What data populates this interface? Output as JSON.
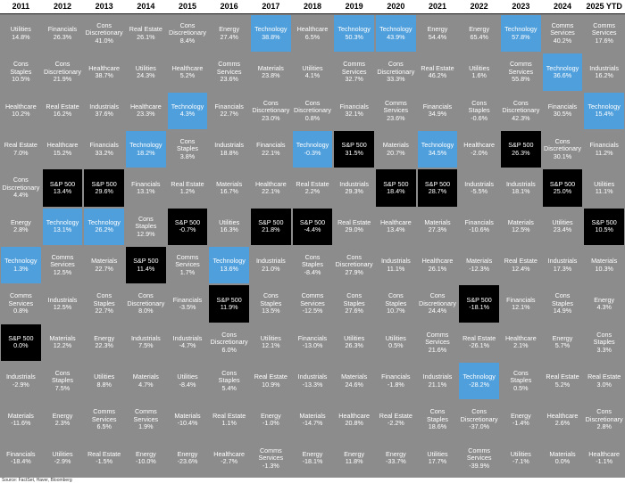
{
  "colors": {
    "grid": "#8c8c8c",
    "technology": "#4f9fdc",
    "sp500": "#000000",
    "text": "#ffffff",
    "header_text": "#000000"
  },
  "footer_text": "Source: FactSet, Haver, Bloomberg",
  "chart_data": {
    "type": "table",
    "title": "",
    "columns": [
      "2011",
      "2012",
      "2013",
      "2014",
      "2015",
      "2016",
      "2017",
      "2018",
      "2019",
      "2020",
      "2021",
      "2022",
      "2023",
      "2024",
      "2025 YTD"
    ],
    "cells": [
      [
        {
          "label": "Utilities",
          "value": "14.8%"
        },
        {
          "label": "Cons Staples",
          "value": "10.5%"
        },
        {
          "label": "Healthcare",
          "value": "10.2%"
        },
        {
          "label": "Real Estate",
          "value": "7.0%"
        },
        {
          "label": "Cons\nDiscretionary",
          "value": "4.4%"
        },
        {
          "label": "Energy",
          "value": "2.8%"
        },
        {
          "label": "Technology",
          "value": "1.3%"
        },
        {
          "label": "Comms\nServices",
          "value": "0.8%"
        },
        {
          "label": "S&P 500",
          "value": "0.0%"
        },
        {
          "label": "Industrials",
          "value": "-2.9%"
        },
        {
          "label": "Materials",
          "value": "-11.6%"
        },
        {
          "label": "Financials",
          "value": "-18.4%"
        }
      ],
      [
        {
          "label": "Financials",
          "value": "26.3%"
        },
        {
          "label": "Cons\nDiscretionary",
          "value": "21.9%"
        },
        {
          "label": "Real Estate",
          "value": "16.2%"
        },
        {
          "label": "Healthcare",
          "value": "15.2%"
        },
        {
          "label": "S&P 500",
          "value": "13.4%"
        },
        {
          "label": "Technology",
          "value": "13.1%"
        },
        {
          "label": "Comms\nServices",
          "value": "12.5%"
        },
        {
          "label": "Industrials",
          "value": "12.5%"
        },
        {
          "label": "Materials",
          "value": "12.2%"
        },
        {
          "label": "Cons Staples",
          "value": "7.5%"
        },
        {
          "label": "Energy",
          "value": "2.3%"
        },
        {
          "label": "Utilities",
          "value": "-2.9%"
        }
      ],
      [
        {
          "label": "Cons\nDiscretionary",
          "value": "41.0%"
        },
        {
          "label": "Healthcare",
          "value": "38.7%"
        },
        {
          "label": "Industrials",
          "value": "37.6%"
        },
        {
          "label": "Financials",
          "value": "33.2%"
        },
        {
          "label": "S&P 500",
          "value": "29.6%"
        },
        {
          "label": "Technology",
          "value": "26.2%"
        },
        {
          "label": "Materials",
          "value": "22.7%"
        },
        {
          "label": "Cons Staples",
          "value": "22.7%"
        },
        {
          "label": "Energy",
          "value": "22.3%"
        },
        {
          "label": "Utilities",
          "value": "8.8%"
        },
        {
          "label": "Comms\nServices",
          "value": "6.5%"
        },
        {
          "label": "Real Estate",
          "value": "-1.5%"
        }
      ],
      [
        {
          "label": "Real Estate",
          "value": "26.1%"
        },
        {
          "label": "Utilities",
          "value": "24.3%"
        },
        {
          "label": "Healthcare",
          "value": "23.3%"
        },
        {
          "label": "Technology",
          "value": "18.2%"
        },
        {
          "label": "Financials",
          "value": "13.1%"
        },
        {
          "label": "Cons Staples",
          "value": "12.9%"
        },
        {
          "label": "S&P 500",
          "value": "11.4%"
        },
        {
          "label": "Cons\nDiscretionary",
          "value": "8.0%"
        },
        {
          "label": "Industrials",
          "value": "7.5%"
        },
        {
          "label": "Materials",
          "value": "4.7%"
        },
        {
          "label": "Comms\nServices",
          "value": "1.9%"
        },
        {
          "label": "Energy",
          "value": "-10.0%"
        }
      ],
      [
        {
          "label": "Cons\nDiscretionary",
          "value": "8.4%"
        },
        {
          "label": "Healthcare",
          "value": "5.2%"
        },
        {
          "label": "Technology",
          "value": "4.3%"
        },
        {
          "label": "Cons Staples",
          "value": "3.8%"
        },
        {
          "label": "Real Estate",
          "value": "1.2%"
        },
        {
          "label": "S&P 500",
          "value": "-0.7%"
        },
        {
          "label": "Comms\nServices",
          "value": "1.7%"
        },
        {
          "label": "Financials",
          "value": "-3.5%"
        },
        {
          "label": "Industrials",
          "value": "-4.7%"
        },
        {
          "label": "Utilities",
          "value": "-8.4%"
        },
        {
          "label": "Materials",
          "value": "-10.4%"
        },
        {
          "label": "Energy",
          "value": "-23.6%"
        }
      ],
      [
        {
          "label": "Energy",
          "value": "27.4%"
        },
        {
          "label": "Comms\nServices",
          "value": "23.6%"
        },
        {
          "label": "Financials",
          "value": "22.7%"
        },
        {
          "label": "Industrials",
          "value": "18.8%"
        },
        {
          "label": "Materials",
          "value": "16.7%"
        },
        {
          "label": "Utilities",
          "value": "16.3%"
        },
        {
          "label": "Technology",
          "value": "13.6%"
        },
        {
          "label": "S&P 500",
          "value": "11.9%"
        },
        {
          "label": "Cons\nDiscretionary",
          "value": "6.0%"
        },
        {
          "label": "Cons Staples",
          "value": "5.4%"
        },
        {
          "label": "Real Estate",
          "value": "1.1%"
        },
        {
          "label": "Healthcare",
          "value": "-2.7%"
        }
      ],
      [
        {
          "label": "Technology",
          "value": "38.8%"
        },
        {
          "label": "Materials",
          "value": "23.8%"
        },
        {
          "label": "Cons\nDiscretionary",
          "value": "23.0%"
        },
        {
          "label": "Financials",
          "value": "22.1%"
        },
        {
          "label": "Healthcare",
          "value": "22.1%"
        },
        {
          "label": "S&P 500",
          "value": "21.8%"
        },
        {
          "label": "Industrials",
          "value": "21.0%"
        },
        {
          "label": "Cons Staples",
          "value": "13.5%"
        },
        {
          "label": "Utilities",
          "value": "12.1%"
        },
        {
          "label": "Real Estate",
          "value": "10.9%"
        },
        {
          "label": "Energy",
          "value": "-1.0%"
        },
        {
          "label": "Comms\nServices",
          "value": "-1.3%"
        }
      ],
      [
        {
          "label": "Healthcare",
          "value": "6.5%"
        },
        {
          "label": "Utilities",
          "value": "4.1%"
        },
        {
          "label": "Cons\nDiscretionary",
          "value": "0.8%"
        },
        {
          "label": "Technology",
          "value": "-0.3%"
        },
        {
          "label": "Real Estate",
          "value": "2.2%"
        },
        {
          "label": "S&P 500",
          "value": "-4.4%"
        },
        {
          "label": "Cons Staples",
          "value": "-8.4%"
        },
        {
          "label": "Comms\nServices",
          "value": "-12.5%"
        },
        {
          "label": "Financials",
          "value": "-13.0%"
        },
        {
          "label": "Industrials",
          "value": "-13.3%"
        },
        {
          "label": "Materials",
          "value": "-14.7%"
        },
        {
          "label": "Energy",
          "value": "-18.1%"
        }
      ],
      [
        {
          "label": "Technology",
          "value": "50.3%"
        },
        {
          "label": "Comms\nServices",
          "value": "32.7%"
        },
        {
          "label": "Financials",
          "value": "32.1%"
        },
        {
          "label": "S&P 500",
          "value": "31.5%"
        },
        {
          "label": "Industrials",
          "value": "29.3%"
        },
        {
          "label": "Real Estate",
          "value": "29.0%"
        },
        {
          "label": "Cons\nDiscretionary",
          "value": "27.9%"
        },
        {
          "label": "Cons Staples",
          "value": "27.6%"
        },
        {
          "label": "Utilities",
          "value": "26.3%"
        },
        {
          "label": "Materials",
          "value": "24.6%"
        },
        {
          "label": "Healthcare",
          "value": "20.8%"
        },
        {
          "label": "Energy",
          "value": "11.8%"
        }
      ],
      [
        {
          "label": "Technology",
          "value": "43.9%"
        },
        {
          "label": "Cons\nDiscretionary",
          "value": "33.3%"
        },
        {
          "label": "Comms\nServices",
          "value": "23.6%"
        },
        {
          "label": "Materials",
          "value": "20.7%"
        },
        {
          "label": "S&P 500",
          "value": "18.4%"
        },
        {
          "label": "Healthcare",
          "value": "13.4%"
        },
        {
          "label": "Industrials",
          "value": "11.1%"
        },
        {
          "label": "Cons Staples",
          "value": "10.7%"
        },
        {
          "label": "Utilities",
          "value": "0.5%"
        },
        {
          "label": "Financials",
          "value": "-1.8%"
        },
        {
          "label": "Real Estate",
          "value": "-2.2%"
        },
        {
          "label": "Energy",
          "value": "-33.7%"
        }
      ],
      [
        {
          "label": "Energy",
          "value": "54.4%"
        },
        {
          "label": "Real Estate",
          "value": "46.2%"
        },
        {
          "label": "Financials",
          "value": "34.9%"
        },
        {
          "label": "Technology",
          "value": "34.5%"
        },
        {
          "label": "S&P 500",
          "value": "28.7%"
        },
        {
          "label": "Materials",
          "value": "27.3%"
        },
        {
          "label": "Healthcare",
          "value": "26.1%"
        },
        {
          "label": "Cons\nDiscretionary",
          "value": "24.4%"
        },
        {
          "label": "Comms\nServices",
          "value": "21.6%"
        },
        {
          "label": "Industrials",
          "value": "21.1%"
        },
        {
          "label": "Cons Staples",
          "value": "18.6%"
        },
        {
          "label": "Utilities",
          "value": "17.7%"
        }
      ],
      [
        {
          "label": "Energy",
          "value": "65.4%"
        },
        {
          "label": "Utilities",
          "value": "1.6%"
        },
        {
          "label": "Cons Staples",
          "value": "-0.6%"
        },
        {
          "label": "Healthcare",
          "value": "-2.0%"
        },
        {
          "label": "Industrials",
          "value": "-5.5%"
        },
        {
          "label": "Financials",
          "value": "-10.6%"
        },
        {
          "label": "Materials",
          "value": "-12.3%"
        },
        {
          "label": "S&P 500",
          "value": "-18.1%"
        },
        {
          "label": "Real Estate",
          "value": "-26.1%"
        },
        {
          "label": "Technology",
          "value": "-28.2%"
        },
        {
          "label": "Cons\nDiscretionary",
          "value": "-37.0%"
        },
        {
          "label": "Comms\nServices",
          "value": "-39.9%"
        }
      ],
      [
        {
          "label": "Technology",
          "value": "57.8%"
        },
        {
          "label": "Comms\nServices",
          "value": "55.8%"
        },
        {
          "label": "Cons\nDiscretionary",
          "value": "42.3%"
        },
        {
          "label": "S&P 500",
          "value": "26.3%"
        },
        {
          "label": "Industrials",
          "value": "18.1%"
        },
        {
          "label": "Materials",
          "value": "12.5%"
        },
        {
          "label": "Real Estate",
          "value": "12.4%"
        },
        {
          "label": "Financials",
          "value": "12.1%"
        },
        {
          "label": "Healthcare",
          "value": "2.1%"
        },
        {
          "label": "Cons Staples",
          "value": "0.5%"
        },
        {
          "label": "Energy",
          "value": "-1.4%"
        },
        {
          "label": "Utilities",
          "value": "-7.1%"
        }
      ],
      [
        {
          "label": "Comms\nServices",
          "value": "40.2%"
        },
        {
          "label": "Technology",
          "value": "36.6%"
        },
        {
          "label": "Financials",
          "value": "30.5%"
        },
        {
          "label": "Cons\nDiscretionary",
          "value": "30.1%"
        },
        {
          "label": "S&P 500",
          "value": "25.0%"
        },
        {
          "label": "Utilities",
          "value": "23.4%"
        },
        {
          "label": "Industrials",
          "value": "17.3%"
        },
        {
          "label": "Cons Staples",
          "value": "14.9%"
        },
        {
          "label": "Energy",
          "value": "5.7%"
        },
        {
          "label": "Real Estate",
          "value": "5.2%"
        },
        {
          "label": "Healthcare",
          "value": "2.6%"
        },
        {
          "label": "Materials",
          "value": "0.0%"
        }
      ],
      [
        {
          "label": "Comms\nServices",
          "value": "17.6%"
        },
        {
          "label": "Industrials",
          "value": "16.2%"
        },
        {
          "label": "Technology",
          "value": "15.4%"
        },
        {
          "label": "Financials",
          "value": "11.2%"
        },
        {
          "label": "Utilities",
          "value": "11.1%"
        },
        {
          "label": "S&P 500",
          "value": "10.5%"
        },
        {
          "label": "Materials",
          "value": "10.3%"
        },
        {
          "label": "Energy",
          "value": "4.3%"
        },
        {
          "label": "Cons Staples",
          "value": "3.3%"
        },
        {
          "label": "Real Estate",
          "value": "3.0%"
        },
        {
          "label": "Cons\nDiscretionary",
          "value": "2.8%"
        },
        {
          "label": "Healthcare",
          "value": "-1.1%"
        }
      ]
    ]
  }
}
